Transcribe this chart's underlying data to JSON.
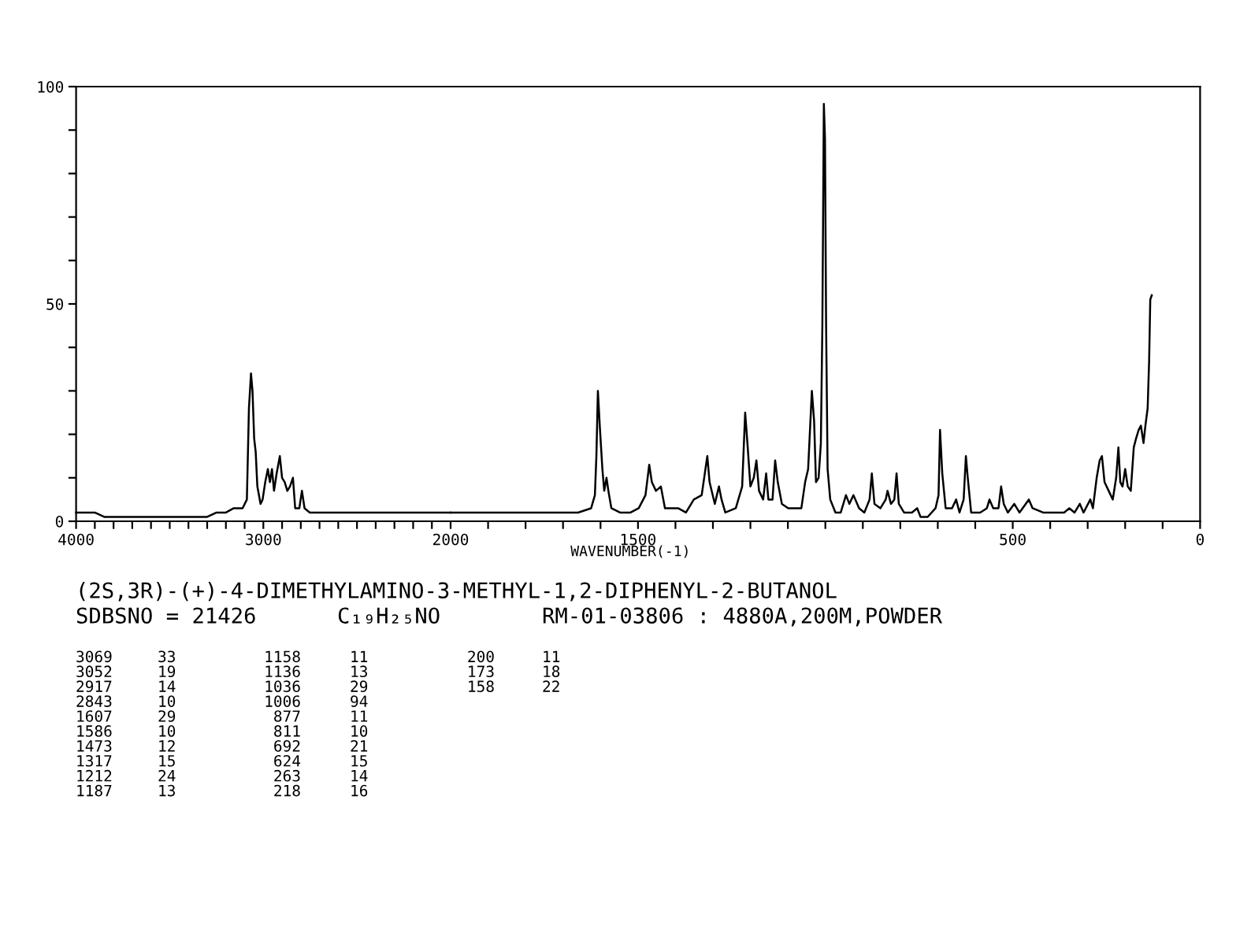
{
  "chart_data": [
    {
      "type": "line",
      "title": "(2S,3R)-(+)-4-DIMETHYLAMINO-3-METHYL-1,2-DIPHENYL-2-BUTANOL",
      "annotations": [
        "SDBSNO = 21426",
        "C₁₉H₂₅NO",
        "RM-01-03806 : 4880A,200M,POWDER",
        "3069\n3052\n2917\n2843\n1607\n1586\n1473\n1317\n1212\n1187",
        "33\n19\n14\n10\n29\n10\n12\n15\n24\n13",
        "1158\n1136\n1036\n1006\n877\n811\n692\n624\n263\n218",
        "11\n13\n29\n94\n11\n10\n21\n15\n14\n16",
        "200\n173\n158",
        "11\n18\n22"
      ],
      "xlim": [
        4000,
        2000
      ],
      "xticks": [
        4000,
        {
          "value": 3900,
          "label": null
        },
        {
          "value": 3800,
          "label": null
        },
        {
          "value": 3700,
          "label": null
        },
        {
          "value": 3600,
          "label": null
        },
        {
          "value": 3500,
          "label": null
        },
        {
          "value": 3400,
          "label": null
        },
        {
          "value": 3300,
          "label": null
        },
        {
          "value": 3200,
          "label": null
        },
        {
          "value": 3100,
          "label": null
        },
        3000,
        {
          "value": 2900,
          "label": null
        },
        {
          "value": 2800,
          "label": null
        },
        {
          "value": 2700,
          "label": null
        },
        {
          "value": 2600,
          "label": null
        },
        {
          "value": 2500,
          "label": null
        },
        {
          "value": 2400,
          "label": null
        },
        {
          "value": 2300,
          "label": null
        },
        {
          "value": 2200,
          "label": null
        },
        {
          "value": 2100,
          "label": null
        },
        2000
      ],
      "ylim": [
        0,
        100
      ],
      "yticks": [
        0,
        {
          "value": 10,
          "label": null
        },
        {
          "value": 20,
          "label": null
        },
        {
          "value": 30,
          "label": null
        },
        {
          "value": 40,
          "label": null
        },
        50,
        {
          "value": 60,
          "label": null
        },
        {
          "value": 70,
          "label": null
        },
        {
          "value": 80,
          "label": null
        },
        {
          "value": 90,
          "label": null
        },
        100
      ],
      "series": [
        {
          "color": "#000000",
          "x": [
            4000,
            3950,
            3900,
            3850,
            3800,
            3750,
            3700,
            3600,
            3500,
            3400,
            3300,
            3250,
            3200,
            3158,
            3111,
            3088,
            3077,
            3066,
            3058,
            3049,
            3041,
            3032,
            3015,
            3004,
            2990,
            2976,
            2965,
            2954,
            2943,
            2929,
            2912,
            2900,
            2886,
            2872,
            2858,
            2842,
            2830,
            2808,
            2794,
            2780,
            2752,
            2700,
            2668,
            2600,
            2500,
            2443,
            2400,
            2300,
            2200,
            2163,
            2100,
            2000
          ],
          "values": [
            2,
            2,
            2,
            1,
            1,
            1,
            1,
            1,
            1,
            1,
            1,
            2,
            2,
            3,
            3,
            5,
            26,
            34,
            30,
            19,
            16,
            8,
            4,
            5,
            9,
            12,
            9,
            12,
            7,
            11,
            15,
            10,
            9,
            7,
            8,
            10,
            3,
            3,
            7,
            3,
            2,
            2,
            2,
            2,
            2,
            2,
            2,
            2,
            2,
            2,
            2,
            2
          ]
        }
      ]
    },
    {
      "type": "line",
      "xlabel": "WAVENUMBER(-1)",
      "xlim": [
        2000,
        0
      ],
      "xticks": [
        {
          "value": 1900,
          "label": null
        },
        {
          "value": 1800,
          "label": null
        },
        {
          "value": 1700,
          "label": null
        },
        {
          "value": 1600,
          "label": null
        },
        1500,
        {
          "value": 1400,
          "label": null
        },
        {
          "value": 1300,
          "label": null
        },
        {
          "value": 1200,
          "label": null
        },
        {
          "value": 1100,
          "label": null
        },
        {
          "value": 1000,
          "label": null
        },
        {
          "value": 900,
          "label": null
        },
        {
          "value": 800,
          "label": null
        },
        {
          "value": 700,
          "label": null
        },
        {
          "value": 600,
          "label": null
        },
        500,
        {
          "value": 400,
          "label": null
        },
        {
          "value": 300,
          "label": null
        },
        {
          "value": 200,
          "label": null
        },
        {
          "value": 100,
          "label": null
        },
        0
      ],
      "ylim": [
        0,
        100
      ],
      "tick_labels": "x",
      "series": [
        {
          "color": "#000000",
          "x": [
            2000,
            1900,
            1800,
            1730,
            1660,
            1625,
            1615,
            1611,
            1607,
            1602,
            1595,
            1590,
            1584,
            1579,
            1571,
            1548,
            1520,
            1498,
            1480,
            1470,
            1463,
            1452,
            1439,
            1428,
            1407,
            1393,
            1372,
            1351,
            1330,
            1320,
            1315,
            1309,
            1295,
            1284,
            1277,
            1267,
            1239,
            1222,
            1214,
            1208,
            1200,
            1191,
            1184,
            1177,
            1166,
            1158,
            1152,
            1141,
            1134,
            1127,
            1116,
            1099,
            1082,
            1064,
            1054,
            1046,
            1036,
            1030,
            1025,
            1018,
            1012,
            1008,
            1004,
            1001,
            998,
            994,
            987,
            973,
            959,
            945,
            936,
            925,
            910,
            896,
            882,
            876,
            869,
            853,
            839,
            834,
            825,
            816,
            810,
            804,
            790,
            769,
            755,
            746,
            727,
            706,
            698,
            694,
            688,
            679,
            662,
            651,
            642,
            631,
            625,
            620,
            611,
            587,
            569,
            562,
            552,
            538,
            531,
            524,
            513,
            496,
            482,
            457,
            447,
            419,
            384,
            363,
            349,
            335,
            321,
            311,
            293,
            286,
            276,
            268,
            262,
            255,
            244,
            233,
            224,
            218,
            213,
            207,
            200,
            193,
            185,
            177,
            171,
            164,
            158,
            151,
            146,
            140,
            136,
            133,
            129
          ],
          "values": [
            2,
            2,
            2,
            2,
            2,
            3,
            6,
            15,
            30,
            22,
            12,
            7,
            10,
            7,
            3,
            2,
            2,
            3,
            6,
            13,
            9,
            7,
            8,
            3,
            3,
            3,
            2,
            5,
            6,
            12,
            15,
            9,
            4,
            8,
            5,
            2,
            3,
            8,
            25,
            18,
            8,
            10,
            14,
            7,
            5,
            11,
            5,
            5,
            14,
            9,
            4,
            3,
            3,
            3,
            9,
            12,
            30,
            23,
            9,
            10,
            18,
            45,
            96,
            88,
            45,
            12,
            5,
            2,
            2,
            6,
            4,
            6,
            3,
            2,
            5,
            11,
            4,
            3,
            5,
            7,
            4,
            5,
            11,
            4,
            2,
            2,
            3,
            1,
            1,
            3,
            6,
            21,
            11,
            3,
            3,
            5,
            2,
            5,
            15,
            10,
            2,
            2,
            3,
            5,
            3,
            3,
            8,
            4,
            2,
            4,
            2,
            5,
            3,
            2,
            2,
            2,
            3,
            2,
            4,
            2,
            5,
            3,
            10,
            14,
            15,
            9,
            7,
            5,
            10,
            17,
            9,
            8,
            12,
            8,
            7,
            17,
            19,
            21,
            22,
            18,
            22,
            26,
            37,
            51,
            52
          ]
        }
      ]
    }
  ]
}
